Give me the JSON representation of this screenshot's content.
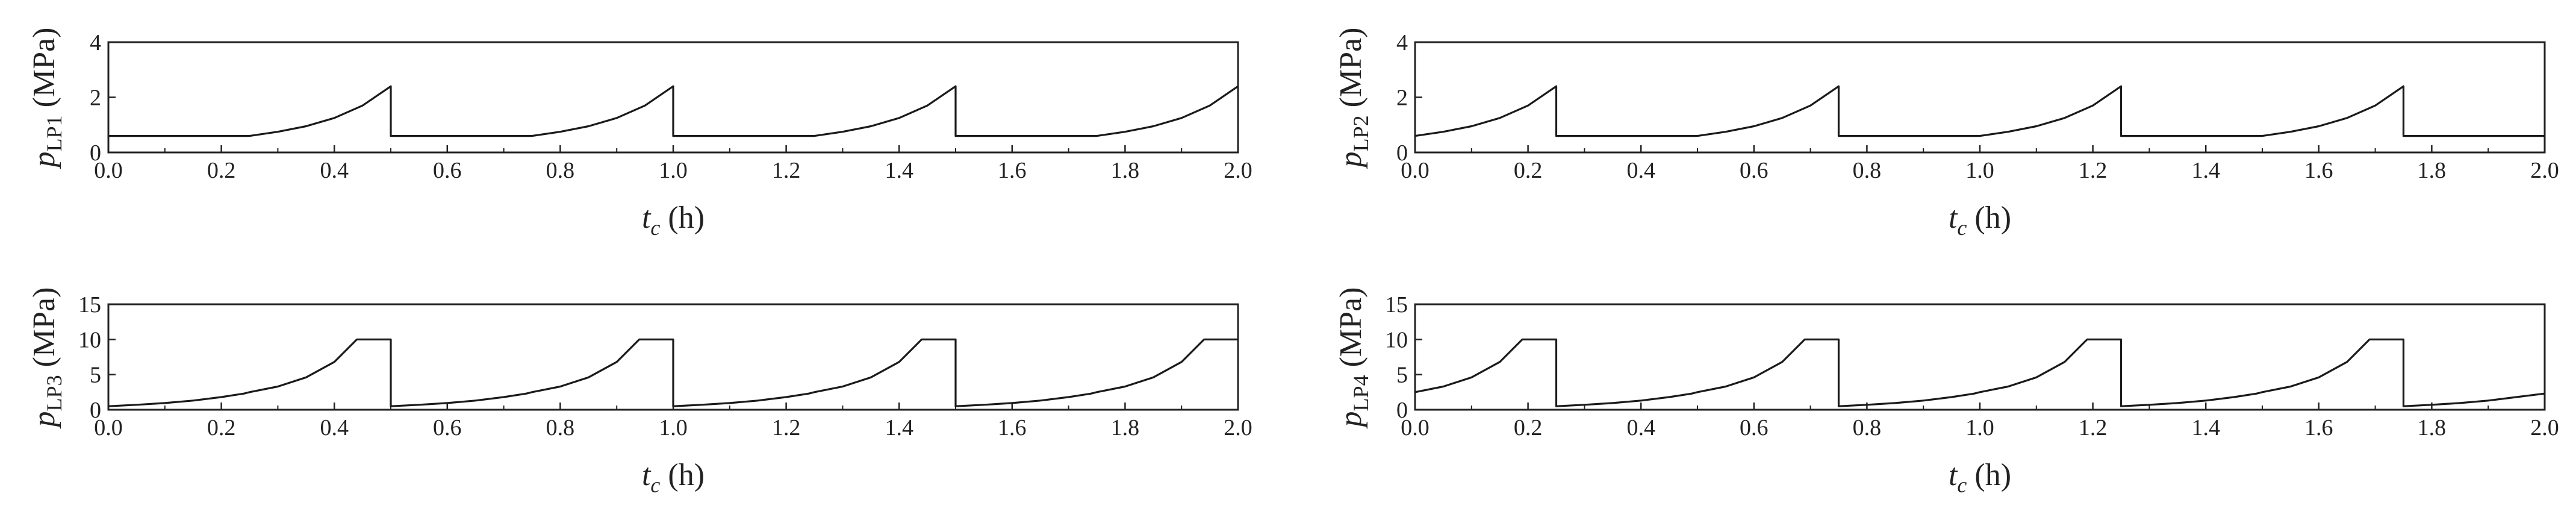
{
  "chart_data": [
    {
      "type": "line",
      "ylabel": "p_LP1 (MPa)",
      "ylabel_main": "p",
      "ylabel_sub": "LP1",
      "ylabel_unit": "(MPa)",
      "xlabel": "t_c (h)",
      "xlabel_main": "t",
      "xlabel_sub": "c",
      "xlabel_unit": "(h)",
      "xlim": [
        0,
        2
      ],
      "ylim": [
        0,
        4
      ],
      "xticks": [
        "0.0",
        "0.2",
        "0.4",
        "0.6",
        "0.8",
        "1.0",
        "1.2",
        "1.4",
        "1.6",
        "1.8",
        "2.0"
      ],
      "yticks": [
        "0",
        "2",
        "4"
      ],
      "series": [
        {
          "x": [
            0.0,
            0.25,
            0.3,
            0.35,
            0.4,
            0.45,
            0.5,
            0.5,
            0.75,
            0.8,
            0.85,
            0.9,
            0.95,
            1.0,
            1.0,
            1.25,
            1.3,
            1.35,
            1.4,
            1.45,
            1.5,
            1.5,
            1.75,
            1.8,
            1.85,
            1.9,
            1.95,
            2.0
          ],
          "y": [
            0.6,
            0.6,
            0.75,
            0.95,
            1.25,
            1.7,
            2.4,
            0.6,
            0.6,
            0.75,
            0.95,
            1.25,
            1.7,
            2.4,
            0.6,
            0.6,
            0.75,
            0.95,
            1.25,
            1.7,
            2.4,
            0.6,
            0.6,
            0.75,
            0.95,
            1.25,
            1.7,
            2.4
          ]
        }
      ]
    },
    {
      "type": "line",
      "ylabel": "p_LP2 (MPa)",
      "ylabel_main": "p",
      "ylabel_sub": "LP2",
      "ylabel_unit": "(MPa)",
      "xlabel": "t_c (h)",
      "xlabel_main": "t",
      "xlabel_sub": "c",
      "xlabel_unit": "(h)",
      "xlim": [
        0,
        2
      ],
      "ylim": [
        0,
        4
      ],
      "xticks": [
        "0.0",
        "0.2",
        "0.4",
        "0.6",
        "0.8",
        "1.0",
        "1.2",
        "1.4",
        "1.6",
        "1.8",
        "2.0"
      ],
      "yticks": [
        "0",
        "2",
        "4"
      ],
      "series": [
        {
          "x": [
            0.0,
            0.05,
            0.1,
            0.15,
            0.2,
            0.25,
            0.25,
            0.5,
            0.55,
            0.6,
            0.65,
            0.7,
            0.75,
            0.75,
            1.0,
            1.05,
            1.1,
            1.15,
            1.2,
            1.25,
            1.25,
            1.5,
            1.55,
            1.6,
            1.65,
            1.7,
            1.75,
            1.75,
            2.0
          ],
          "y": [
            0.6,
            0.75,
            0.95,
            1.25,
            1.7,
            2.4,
            0.6,
            0.6,
            0.75,
            0.95,
            1.25,
            1.7,
            2.4,
            0.6,
            0.6,
            0.75,
            0.95,
            1.25,
            1.7,
            2.4,
            0.6,
            0.6,
            0.75,
            0.95,
            1.25,
            1.7,
            2.4,
            0.6,
            0.6
          ]
        }
      ]
    },
    {
      "type": "line",
      "ylabel": "p_LP3 (MPa)",
      "ylabel_main": "p",
      "ylabel_sub": "LP3",
      "ylabel_unit": "(MPa)",
      "xlabel": "t_c (h)",
      "xlabel_main": "t",
      "xlabel_sub": "c",
      "xlabel_unit": "(h)",
      "xlim": [
        0,
        2
      ],
      "ylim": [
        0,
        15
      ],
      "xticks": [
        "0.0",
        "0.2",
        "0.4",
        "0.6",
        "0.8",
        "1.0",
        "1.2",
        "1.4",
        "1.6",
        "1.8",
        "2.0"
      ],
      "yticks": [
        "0",
        "5",
        "10",
        "15"
      ],
      "series": [
        {
          "x": [
            0.0,
            0.05,
            0.1,
            0.15,
            0.2,
            0.24,
            0.25,
            0.3,
            0.35,
            0.4,
            0.44,
            0.5,
            0.5,
            0.55,
            0.6,
            0.65,
            0.7,
            0.74,
            0.75,
            0.8,
            0.85,
            0.9,
            0.94,
            1.0,
            1.0,
            1.05,
            1.1,
            1.15,
            1.2,
            1.24,
            1.25,
            1.3,
            1.35,
            1.4,
            1.44,
            1.5,
            1.5,
            1.55,
            1.6,
            1.65,
            1.7,
            1.74,
            1.75,
            1.8,
            1.85,
            1.9,
            1.94,
            2.0
          ],
          "y": [
            0.5,
            0.7,
            0.95,
            1.3,
            1.8,
            2.3,
            2.5,
            3.3,
            4.6,
            6.8,
            10.0,
            10.0,
            0.5,
            0.7,
            0.95,
            1.3,
            1.8,
            2.3,
            2.5,
            3.3,
            4.6,
            6.8,
            10.0,
            10.0,
            0.5,
            0.7,
            0.95,
            1.3,
            1.8,
            2.3,
            2.5,
            3.3,
            4.6,
            6.8,
            10.0,
            10.0,
            0.5,
            0.7,
            0.95,
            1.3,
            1.8,
            2.3,
            2.5,
            3.3,
            4.6,
            6.8,
            10.0,
            10.0
          ]
        }
      ]
    },
    {
      "type": "line",
      "ylabel": "p_LP4 (MPa)",
      "ylabel_main": "p",
      "ylabel_sub": "LP4",
      "ylabel_unit": "(MPa)",
      "xlabel": "t_c (h)",
      "xlabel_main": "t",
      "xlabel_sub": "c",
      "xlabel_unit": "(h)",
      "xlim": [
        0,
        2
      ],
      "ylim": [
        0,
        15
      ],
      "xticks": [
        "0.0",
        "0.2",
        "0.4",
        "0.6",
        "0.8",
        "1.0",
        "1.2",
        "1.4",
        "1.6",
        "1.8",
        "2.0"
      ],
      "yticks": [
        "0",
        "5",
        "10",
        "15"
      ],
      "series": [
        {
          "x": [
            0.0,
            0.05,
            0.1,
            0.15,
            0.19,
            0.25,
            0.25,
            0.3,
            0.35,
            0.4,
            0.45,
            0.49,
            0.5,
            0.55,
            0.6,
            0.65,
            0.69,
            0.75,
            0.75,
            0.8,
            0.85,
            0.9,
            0.95,
            0.99,
            1.0,
            1.05,
            1.1,
            1.15,
            1.19,
            1.25,
            1.25,
            1.3,
            1.35,
            1.4,
            1.45,
            1.49,
            1.5,
            1.55,
            1.6,
            1.65,
            1.69,
            1.75,
            1.75,
            1.8,
            1.85,
            1.9,
            1.95,
            2.0
          ],
          "y": [
            2.5,
            3.3,
            4.6,
            6.8,
            10.0,
            10.0,
            0.5,
            0.7,
            0.95,
            1.3,
            1.8,
            2.3,
            2.5,
            3.3,
            4.6,
            6.8,
            10.0,
            10.0,
            0.5,
            0.7,
            0.95,
            1.3,
            1.8,
            2.3,
            2.5,
            3.3,
            4.6,
            6.8,
            10.0,
            10.0,
            0.5,
            0.7,
            0.95,
            1.3,
            1.8,
            2.3,
            2.5,
            3.3,
            4.6,
            6.8,
            10.0,
            10.0,
            0.5,
            0.7,
            0.95,
            1.3,
            1.8,
            2.3
          ]
        }
      ]
    }
  ]
}
